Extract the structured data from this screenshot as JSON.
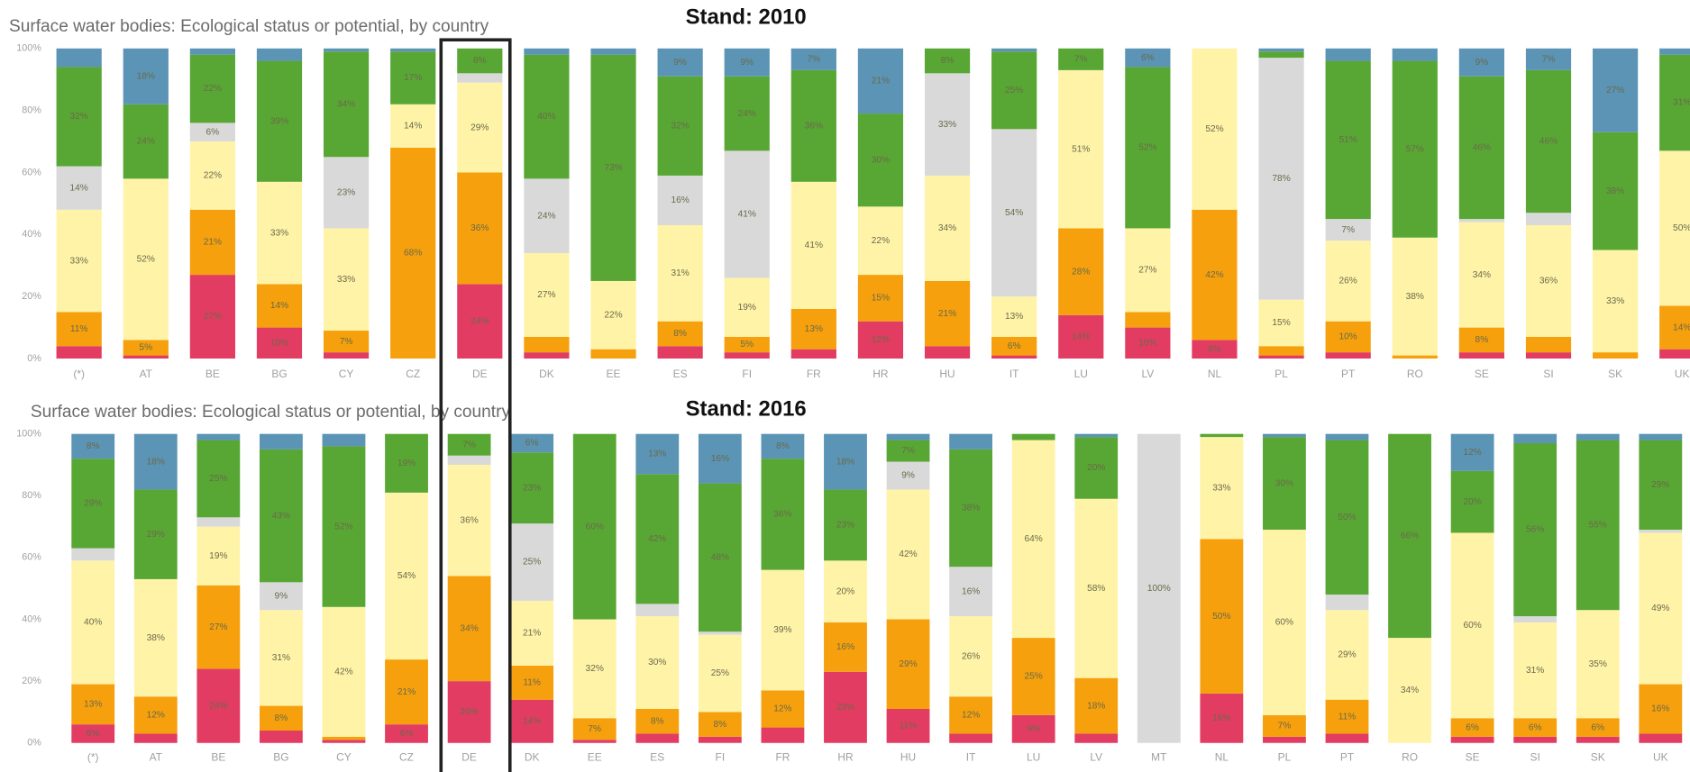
{
  "chart_data": [
    {
      "type": "stacked_bar",
      "title": "Surface water bodies: Ecological status or potential, by country",
      "subtitle": "Stand: 2010",
      "categories": [
        "(*)",
        "AT",
        "BE",
        "BG",
        "CY",
        "CZ",
        "DE",
        "DK",
        "EE",
        "ES",
        "FI",
        "FR",
        "HR",
        "HU",
        "IT",
        "LU",
        "LV",
        "NL",
        "PL",
        "PT",
        "RO",
        "SE",
        "SI",
        "SK",
        "UK"
      ],
      "ylim": [
        0,
        100
      ],
      "yticks": [
        {
          "value": 0,
          "label": "0%"
        },
        {
          "value": 20,
          "label": "20%"
        },
        {
          "value": 40,
          "label": "40%"
        },
        {
          "value": 60,
          "label": "60%"
        },
        {
          "value": 80,
          "label": "80%"
        },
        {
          "value": 100,
          "label": "100%"
        }
      ],
      "series": [
        {
          "color": "#e23c62",
          "values": [
            4,
            1,
            27,
            10,
            2,
            0,
            24,
            2,
            0,
            4,
            2,
            3,
            12,
            4,
            1,
            14,
            10,
            6,
            1,
            2,
            0,
            2,
            2,
            0,
            3
          ],
          "value_labels": [
            null,
            null,
            "27%",
            "10%",
            null,
            null,
            "24%",
            null,
            null,
            null,
            null,
            null,
            "12%",
            null,
            null,
            "14%",
            "10%",
            "6%",
            null,
            null,
            null,
            null,
            null,
            null,
            null
          ]
        },
        {
          "color": "#f5a00c",
          "values": [
            11,
            5,
            21,
            14,
            7,
            68,
            36,
            5,
            3,
            8,
            5,
            13,
            15,
            21,
            6,
            28,
            5,
            42,
            3,
            10,
            1,
            8,
            5,
            2,
            14
          ],
          "value_labels": [
            "11%",
            "5%",
            "21%",
            "14%",
            "7%",
            "68%",
            "36%",
            null,
            null,
            "8%",
            "5%",
            "13%",
            "15%",
            "21%",
            "6%",
            "28%",
            null,
            "42%",
            null,
            "10%",
            null,
            "8%",
            null,
            null,
            "14%"
          ]
        },
        {
          "color": "#fff3a8",
          "values": [
            33,
            52,
            22,
            33,
            33,
            14,
            29,
            27,
            22,
            31,
            19,
            41,
            22,
            34,
            13,
            51,
            27,
            52,
            15,
            26,
            38,
            34,
            36,
            33,
            50
          ],
          "value_labels": [
            "33%",
            "52%",
            "22%",
            "33%",
            "33%",
            "14%",
            "29%",
            "27%",
            "22%",
            "31%",
            "19%",
            "41%",
            "22%",
            "34%",
            "13%",
            "51%",
            "27%",
            "52%",
            "15%",
            "26%",
            "38%",
            "34%",
            "36%",
            "33%",
            "50%"
          ]
        },
        {
          "color": "#d9d9d9",
          "values": [
            14,
            0,
            6,
            0,
            23,
            0,
            3,
            24,
            0,
            16,
            41,
            0,
            0,
            33,
            54,
            0,
            0,
            0,
            78,
            7,
            0,
            1,
            4,
            0,
            0
          ],
          "value_labels": [
            "14%",
            null,
            "6%",
            null,
            "23%",
            null,
            null,
            "24%",
            null,
            "16%",
            "41%",
            null,
            null,
            "33%",
            "54%",
            null,
            null,
            null,
            "78%",
            "7%",
            null,
            null,
            null,
            null,
            null
          ]
        },
        {
          "color": "#58a734",
          "values": [
            32,
            24,
            22,
            39,
            34,
            17,
            8,
            40,
            73,
            32,
            24,
            36,
            30,
            8,
            25,
            7,
            52,
            0,
            2,
            51,
            57,
            46,
            46,
            38,
            31
          ],
          "value_labels": [
            "32%",
            "24%",
            "22%",
            "39%",
            "34%",
            "17%",
            "8%",
            "40%",
            "73%",
            "32%",
            "24%",
            "36%",
            "30%",
            "8%",
            "25%",
            "7%",
            "52%",
            null,
            null,
            "51%",
            "57%",
            "46%",
            "46%",
            "38%",
            "31%"
          ]
        },
        {
          "color": "#5b94b5",
          "values": [
            6,
            18,
            2,
            4,
            1,
            1,
            0,
            2,
            2,
            9,
            9,
            7,
            21,
            0,
            1,
            0,
            6,
            0,
            1,
            4,
            4,
            9,
            7,
            27,
            2
          ],
          "value_labels": [
            null,
            "18%",
            null,
            null,
            null,
            null,
            null,
            null,
            null,
            "9%",
            "9%",
            "7%",
            "21%",
            null,
            null,
            null,
            "6%",
            null,
            null,
            null,
            null,
            "9%",
            "7%",
            "27%",
            null
          ]
        }
      ]
    },
    {
      "type": "stacked_bar",
      "title": "Surface water bodies: Ecological status or potential, by country",
      "subtitle": "Stand: 2016",
      "categories": [
        "(*)",
        "AT",
        "BE",
        "BG",
        "CY",
        "CZ",
        "DE",
        "DK",
        "EE",
        "ES",
        "FI",
        "FR",
        "HR",
        "HU",
        "IT",
        "LU",
        "LV",
        "MT",
        "NL",
        "PL",
        "PT",
        "RO",
        "SE",
        "SI",
        "SK",
        "UK"
      ],
      "ylim": [
        0,
        100
      ],
      "yticks": [
        {
          "value": 0,
          "label": "0%"
        },
        {
          "value": 20,
          "label": "20%"
        },
        {
          "value": 40,
          "label": "40%"
        },
        {
          "value": 60,
          "label": "60%"
        },
        {
          "value": 80,
          "label": "80%"
        },
        {
          "value": 100,
          "label": "100%"
        }
      ],
      "series": [
        {
          "color": "#e23c62",
          "values": [
            6,
            3,
            24,
            4,
            1,
            6,
            20,
            14,
            1,
            3,
            2,
            5,
            23,
            11,
            3,
            9,
            3,
            0,
            16,
            2,
            3,
            0,
            2,
            2,
            2,
            3
          ],
          "value_labels": [
            "6%",
            null,
            "24%",
            null,
            null,
            "6%",
            "20%",
            "14%",
            null,
            null,
            null,
            null,
            "23%",
            "11%",
            null,
            "9%",
            null,
            null,
            "16%",
            null,
            null,
            null,
            null,
            null,
            null,
            null
          ]
        },
        {
          "color": "#f5a00c",
          "values": [
            13,
            12,
            27,
            8,
            1,
            21,
            34,
            11,
            7,
            8,
            8,
            12,
            16,
            29,
            12,
            25,
            18,
            0,
            50,
            7,
            11,
            0,
            6,
            6,
            6,
            16
          ],
          "value_labels": [
            "13%",
            "12%",
            "27%",
            "8%",
            null,
            "21%",
            "34%",
            "11%",
            "7%",
            "8%",
            "8%",
            "12%",
            "16%",
            "29%",
            "12%",
            "25%",
            "18%",
            null,
            "50%",
            "7%",
            "11%",
            null,
            "6%",
            "6%",
            "6%",
            "16%"
          ]
        },
        {
          "color": "#fff3a8",
          "values": [
            40,
            38,
            19,
            31,
            42,
            54,
            36,
            21,
            32,
            30,
            25,
            39,
            20,
            42,
            26,
            64,
            58,
            0,
            33,
            60,
            29,
            34,
            60,
            31,
            35,
            49
          ],
          "value_labels": [
            "40%",
            "38%",
            "19%",
            "31%",
            "42%",
            "54%",
            "36%",
            "21%",
            "32%",
            "30%",
            "25%",
            "39%",
            "20%",
            "42%",
            "26%",
            "64%",
            "58%",
            null,
            "33%",
            "60%",
            "29%",
            "34%",
            "60%",
            "31%",
            "35%",
            "49%"
          ]
        },
        {
          "color": "#d9d9d9",
          "values": [
            4,
            0,
            3,
            9,
            0,
            0,
            3,
            25,
            0,
            4,
            1,
            0,
            0,
            9,
            16,
            0,
            0,
            100,
            0,
            0,
            5,
            0,
            0,
            2,
            0,
            1
          ],
          "value_labels": [
            null,
            null,
            null,
            "9%",
            null,
            null,
            null,
            "25%",
            null,
            null,
            null,
            null,
            null,
            "9%",
            "16%",
            null,
            null,
            "100%",
            null,
            null,
            null,
            null,
            null,
            null,
            null,
            null
          ]
        },
        {
          "color": "#58a734",
          "values": [
            29,
            29,
            25,
            43,
            52,
            19,
            7,
            23,
            60,
            42,
            48,
            36,
            23,
            7,
            38,
            2,
            20,
            0,
            1,
            30,
            50,
            66,
            20,
            56,
            55,
            29
          ],
          "value_labels": [
            "29%",
            "29%",
            "25%",
            "43%",
            "52%",
            "19%",
            "7%",
            "23%",
            "60%",
            "42%",
            "48%",
            "36%",
            "23%",
            "7%",
            "38%",
            null,
            "20%",
            null,
            null,
            "30%",
            "50%",
            "66%",
            "20%",
            "56%",
            "55%",
            "29%"
          ]
        },
        {
          "color": "#5b94b5",
          "values": [
            8,
            18,
            2,
            5,
            4,
            0,
            0,
            6,
            0,
            13,
            16,
            8,
            18,
            2,
            5,
            0,
            1,
            0,
            0,
            1,
            2,
            0,
            12,
            3,
            2,
            2
          ],
          "value_labels": [
            "8%",
            "18%",
            null,
            null,
            null,
            null,
            null,
            "6%",
            null,
            "13%",
            "16%",
            "8%",
            "18%",
            null,
            null,
            null,
            null,
            null,
            null,
            null,
            null,
            null,
            "12%",
            null,
            null,
            null
          ]
        }
      ]
    }
  ]
}
